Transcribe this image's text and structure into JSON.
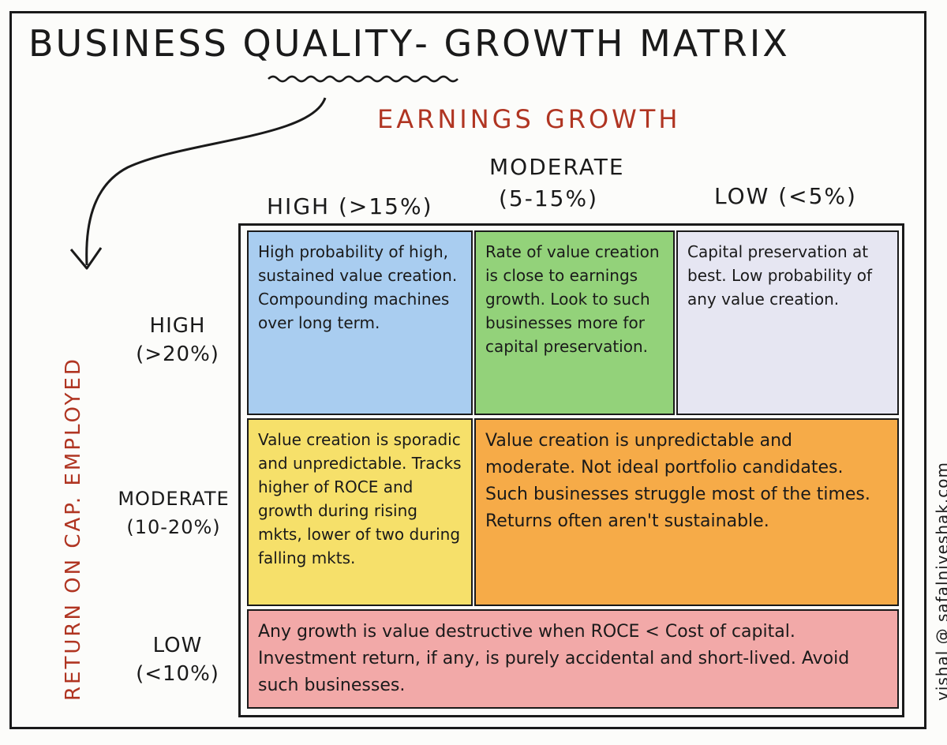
{
  "title": {
    "part1": "BUSINESS ",
    "part2": "QUALITY",
    "part3": "- GROWTH MATRIX"
  },
  "x_axis": {
    "label": "EARNINGS GROWTH",
    "columns": {
      "high": "HIGH (>15%)",
      "moderate_line1": "MODERATE",
      "moderate_line2": "(5-15%)",
      "low": "LOW (<5%)"
    }
  },
  "y_axis": {
    "label": "RETURN ON CAP. EMPLOYED",
    "rows": {
      "high_line1": "HIGH",
      "high_line2": "(>20%)",
      "moderate_line1": "MODERATE",
      "moderate_line2": "(10-20%)",
      "low_line1": "LOW",
      "low_line2": "(<10%)"
    }
  },
  "cells": {
    "high_high": "High probability of high, sustained value creation. Compounding machines over long term.",
    "high_moderate": "Rate of value creation is close to earnings growth. Look to such businesses more for capital preservation.",
    "high_low": "Capital preservation at best. Low probability of any value creation.",
    "moderate_high": "Value creation is sporadic and unpredictable. Tracks higher of ROCE and growth during rising mkts, lower of two during falling mkts.",
    "moderate_merged": "Value creation is unpredictable and moderate. Not ideal portfolio candidates. Such businesses struggle most of the times. Returns often aren't sustainable.",
    "low_row": "Any growth is value destructive when ROCE < Cost of capital. Investment return, if any, is purely accidental and short-lived. Avoid such businesses."
  },
  "credit": "vishal @ safalniveshak.com",
  "colors": {
    "accent_red": "#b03522",
    "cell_blue": "#a9cdf0",
    "cell_green": "#93d27a",
    "cell_lavender": "#e6e6f2",
    "cell_yellow": "#f6e06a",
    "cell_orange": "#f6ab48",
    "cell_pink": "#f2a9a8"
  }
}
